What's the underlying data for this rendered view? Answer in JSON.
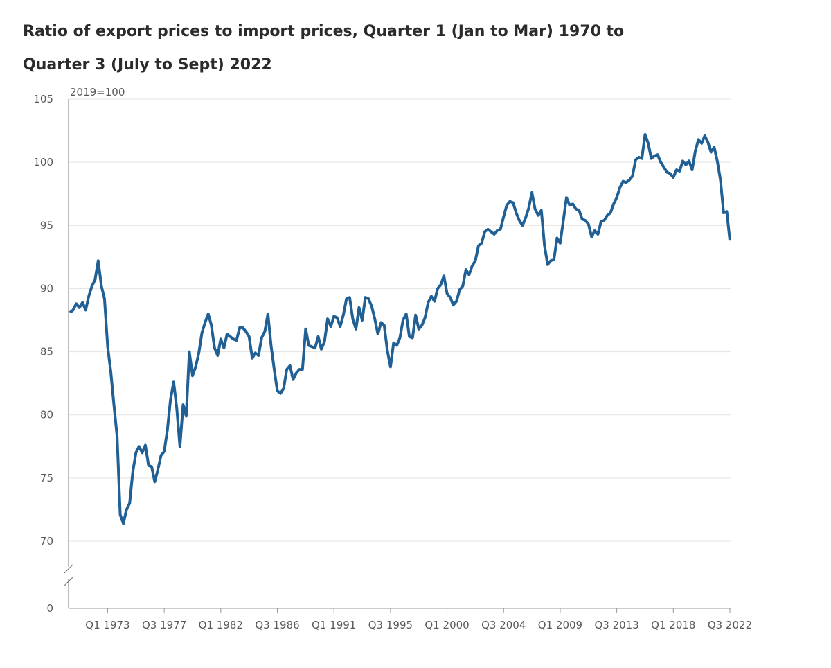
{
  "header": {
    "title_line1": "Ratio of export prices to import prices, Quarter 1 (Jan to Mar) 1970 to",
    "title_line2": "Quarter 3 (July to Sept) 2022"
  },
  "chart_data": {
    "type": "line",
    "title": "Ratio of export prices to import prices, Quarter 1 (Jan to Mar) 1970 to Quarter 3 (July to Sept) 2022",
    "unit_label": "2019=100",
    "xlabel": "",
    "ylabel": "",
    "y_ticks": [
      0,
      70,
      75,
      80,
      85,
      90,
      95,
      100,
      105
    ],
    "y_axis_break": true,
    "ylim": [
      70,
      105
    ],
    "x_tick_labels": [
      "Q1 1973",
      "Q3 1977",
      "Q1 1982",
      "Q3 1986",
      "Q1 1991",
      "Q3 1995",
      "Q1 2000",
      "Q3 2004",
      "Q1 2009",
      "Q3 2013",
      "Q1 2018",
      "Q3 2022"
    ],
    "x_start": "Q1 1970",
    "x_end": "Q3 2022",
    "grid": true,
    "line_color": "#206095",
    "series": [
      {
        "values": [
          88.1,
          88.3,
          88.8,
          88.5,
          88.9,
          88.3,
          89.4,
          90.2,
          90.7,
          92.2,
          90.2,
          89.2,
          85.4,
          83.4,
          80.8,
          78.3,
          72.1,
          71.4,
          72.5,
          73.0,
          75.5,
          77.0,
          77.5,
          77.0,
          77.6,
          76.0,
          75.9,
          74.7,
          75.7,
          76.8,
          77.1,
          78.8,
          81.2,
          82.6,
          80.5,
          77.5,
          80.8,
          79.9,
          85.0,
          83.1,
          83.8,
          84.9,
          86.5,
          87.3,
          88.0,
          87.1,
          85.3,
          84.7,
          86.0,
          85.3,
          86.4,
          86.2,
          86.0,
          85.9,
          86.9,
          86.9,
          86.6,
          86.2,
          84.5,
          84.9,
          84.7,
          86.1,
          86.6,
          88.0,
          85.5,
          83.6,
          81.9,
          81.7,
          82.1,
          83.6,
          83.9,
          82.8,
          83.3,
          83.6,
          83.6,
          86.8,
          85.5,
          85.4,
          85.3,
          86.2,
          85.2,
          85.8,
          87.6,
          87.0,
          87.8,
          87.7,
          87.0,
          87.9,
          89.2,
          89.3,
          87.6,
          86.8,
          88.5,
          87.5,
          89.3,
          89.2,
          88.6,
          87.6,
          86.4,
          87.3,
          87.1,
          85.1,
          83.8,
          85.7,
          85.5,
          86.1,
          87.5,
          88.0,
          86.2,
          86.1,
          87.9,
          86.8,
          87.1,
          87.7,
          88.9,
          89.4,
          89.0,
          90.0,
          90.3,
          91.0,
          89.6,
          89.3,
          88.7,
          89.0,
          89.9,
          90.2,
          91.5,
          91.1,
          91.8,
          92.2,
          93.4,
          93.6,
          94.5,
          94.7,
          94.5,
          94.3,
          94.6,
          94.7,
          95.7,
          96.6,
          96.9,
          96.8,
          96.0,
          95.4,
          95.0,
          95.6,
          96.4,
          97.6,
          96.3,
          95.8,
          96.2,
          93.4,
          91.9,
          92.2,
          92.3,
          94.0,
          93.6,
          95.4,
          97.2,
          96.6,
          96.7,
          96.3,
          96.2,
          95.5,
          95.4,
          95.1,
          94.1,
          94.6,
          94.3,
          95.3,
          95.4,
          95.8,
          96.0,
          96.7,
          97.2,
          98.0,
          98.5,
          98.4,
          98.6,
          98.9,
          100.2,
          100.4,
          100.3,
          102.2,
          101.5,
          100.3,
          100.5,
          100.6,
          100.0,
          99.6,
          99.2,
          99.1,
          98.8,
          99.4,
          99.3,
          100.1,
          99.8,
          100.1,
          99.4,
          100.9,
          101.8,
          101.5,
          102.1,
          101.6,
          100.8,
          101.2,
          100.1,
          98.6,
          96.0,
          96.1,
          93.8
        ]
      }
    ]
  }
}
